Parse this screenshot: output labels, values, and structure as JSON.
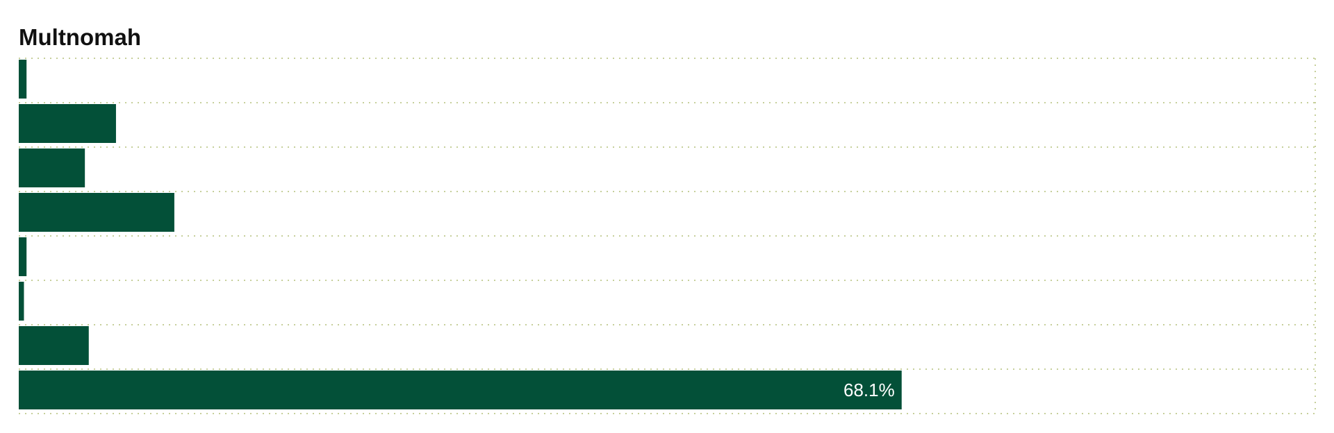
{
  "chart_data": {
    "type": "bar",
    "orientation": "horizontal",
    "title": "Multnomah",
    "xlabel": "",
    "ylabel": "",
    "xlim": [
      0,
      100
    ],
    "values": [
      0.6,
      7.5,
      5.1,
      12.0,
      0.6,
      0.4,
      5.4,
      68.1
    ],
    "data_labels": [
      "",
      "",
      "",
      "",
      "",
      "",
      "",
      "68.1%"
    ],
    "grid": true,
    "legend": "none"
  },
  "colors": {
    "bar": "#035038",
    "grid_dots": "#c6cf9a",
    "label_text": "#ffffff",
    "title_text": "#111111"
  }
}
